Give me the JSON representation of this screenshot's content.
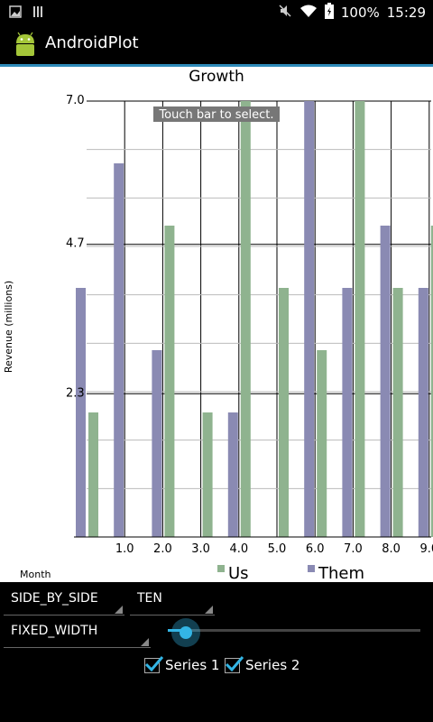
{
  "status_bar": {
    "battery": "100%",
    "time": "15:29",
    "icons": [
      "gallery-icon",
      "sim-icon",
      "mute-icon",
      "wifi-icon",
      "battery-icon"
    ]
  },
  "app": {
    "title": "AndroidPlot",
    "icon": "android-icon"
  },
  "chart_data": {
    "type": "bar",
    "title": "Growth",
    "xlabel": "Month",
    "ylabel": "Revenue (millions)",
    "overlay_text": "Touch bar to select.",
    "ylim": [
      0,
      7.0
    ],
    "y_tick_labels": [
      "2.3",
      "4.7",
      "7.0"
    ],
    "y_ticks": [
      2.3,
      4.7,
      7.0
    ],
    "x": [
      0,
      1,
      2,
      3,
      4,
      5,
      6,
      7,
      8,
      9
    ],
    "x_tick_labels": [
      "",
      "1.0",
      "2.0",
      "3.0",
      "4.0",
      "5.0",
      "6.0",
      "7.0",
      "8.0",
      "9.0"
    ],
    "series": [
      {
        "name": "Us",
        "color": "#8fb38f",
        "values": [
          2.0,
          0,
          5.0,
          2.0,
          7.0,
          4.0,
          3.0,
          7.0,
          4.0,
          5.0
        ]
      },
      {
        "name": "Them",
        "color": "#8a8ab3",
        "values": [
          4.0,
          6.0,
          3.0,
          0,
          2.0,
          0,
          7.0,
          4.0,
          5.0,
          4.0
        ]
      }
    ],
    "grid": true,
    "legend_placement": "bottom-right"
  },
  "controls": {
    "render_mode": "SIDE_BY_SIDE",
    "count": "TEN",
    "width_mode": "FIXED_WIDTH",
    "slider_level": 0.07,
    "series1_label": "Series 1",
    "series2_label": "Series 2",
    "series1_checked": true,
    "series2_checked": true,
    "accent": "#33b5e5"
  }
}
